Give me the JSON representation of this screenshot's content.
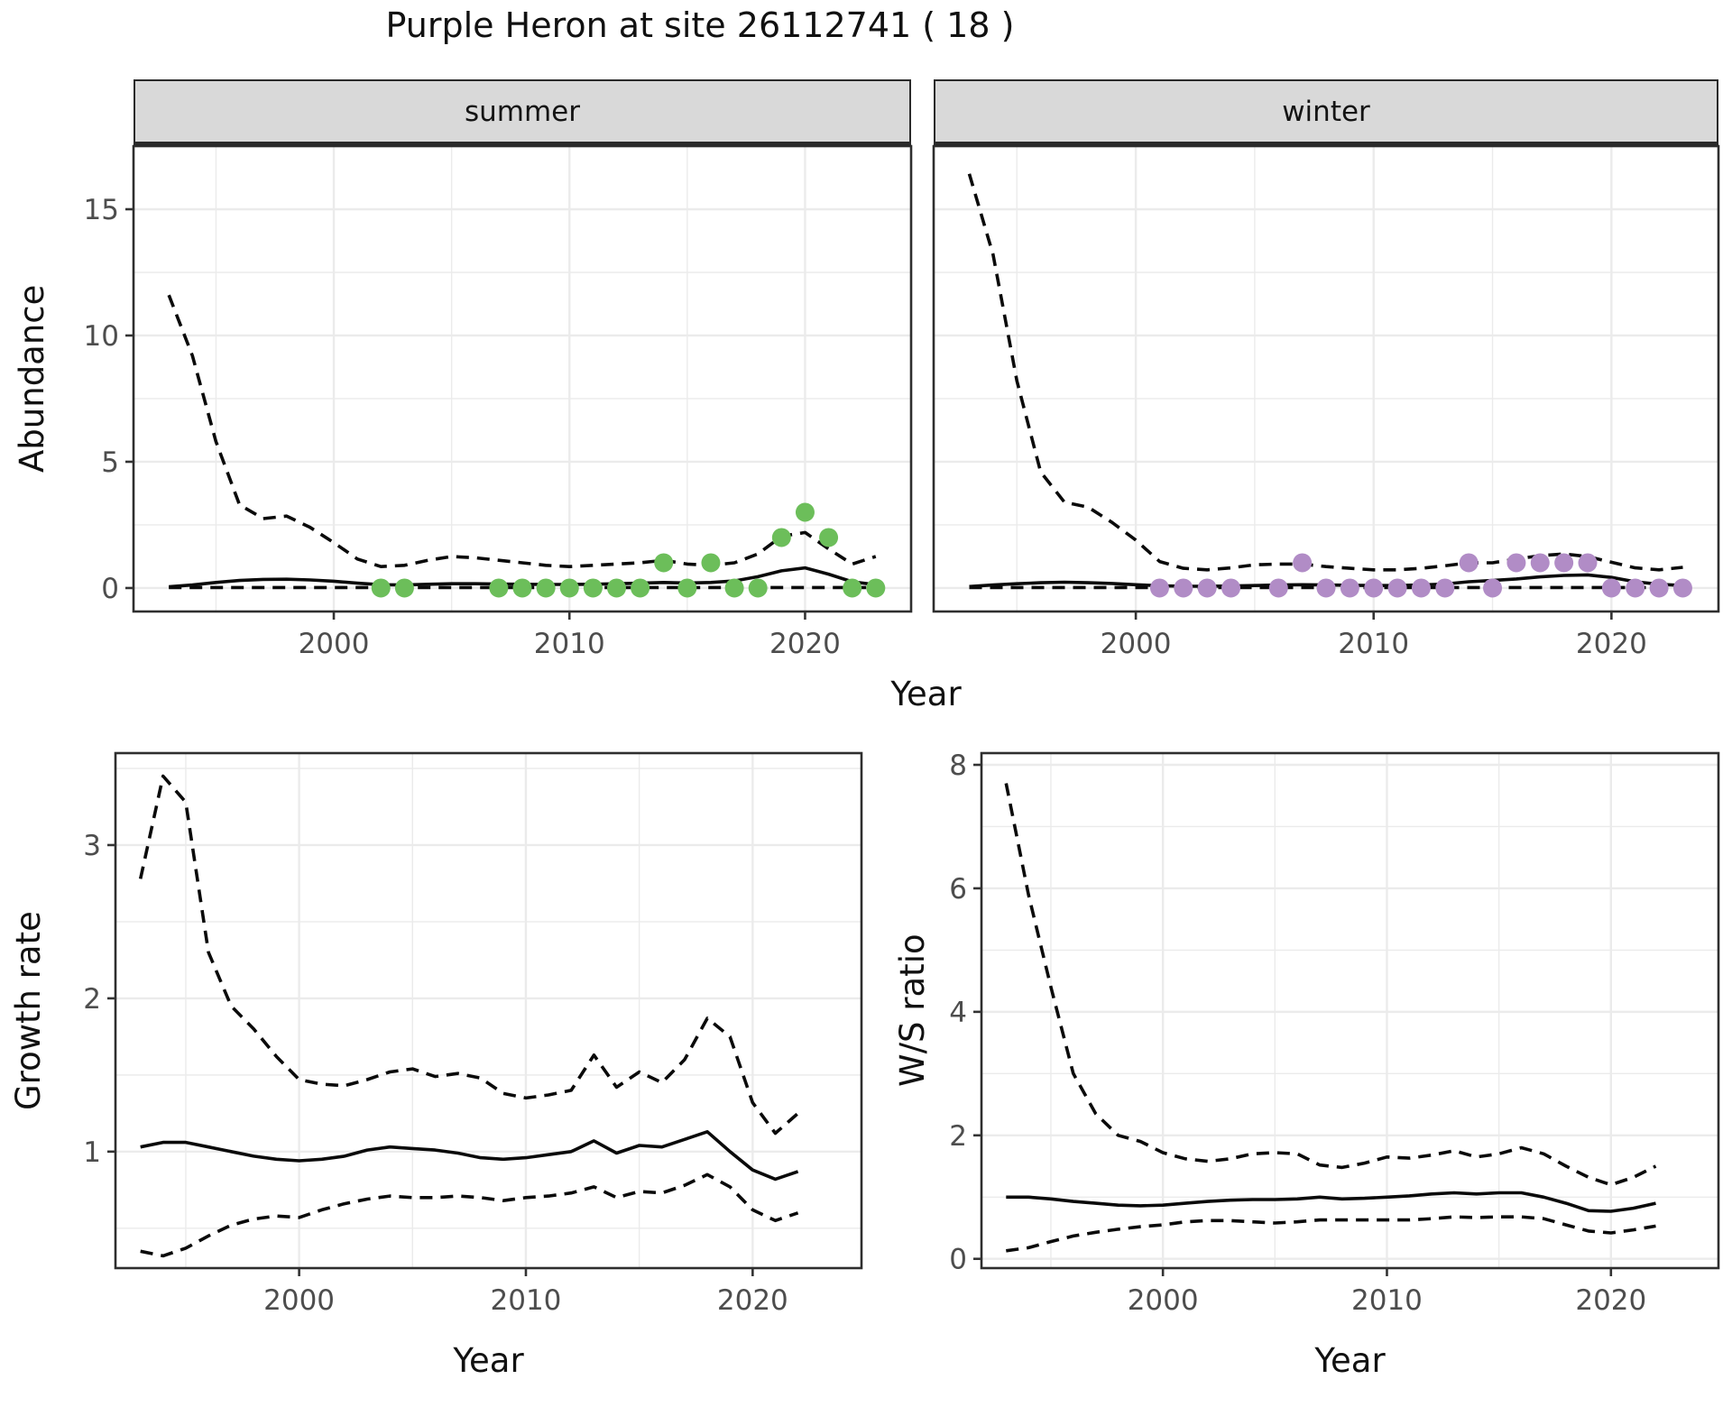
{
  "title": "Purple Heron at site 26112741 ( 18 )",
  "axes": {
    "abundance_label": "Abundance",
    "growth_label": "Growth rate",
    "ws_label": "W/S ratio",
    "year_label": "Year"
  },
  "facets": {
    "summer": "summer",
    "winter": "winter"
  },
  "colors": {
    "summer_point": "#6cbe5a",
    "winter_point": "#b18cc6",
    "line": "#0a0a0a",
    "grid": "#ebebeb",
    "panel_border": "#2e2e2e",
    "tick_mark": "#333333",
    "tick_text": "#4d4d4d",
    "strip_bg": "#d9d9d9"
  },
  "chart_data": [
    {
      "id": "abundance_summer",
      "type": "line",
      "facet_label": "summer",
      "xlabel": "Year",
      "ylabel": "Abundance",
      "xlim": [
        1991.5,
        2024.5
      ],
      "ylim": [
        -0.93,
        17.5
      ],
      "xticks": [
        2000,
        2010,
        2020
      ],
      "xminor": [
        1995,
        2005,
        2015
      ],
      "yticks": [
        0,
        5,
        10,
        15
      ],
      "yminor": [
        2.5,
        7.5,
        12.5
      ],
      "show_y_tick_labels": true,
      "x": [
        1993,
        1994,
        1995,
        1996,
        1997,
        1998,
        1999,
        2000,
        2001,
        2002,
        2003,
        2004,
        2005,
        2006,
        2007,
        2008,
        2009,
        2010,
        2011,
        2012,
        2013,
        2014,
        2015,
        2016,
        2017,
        2018,
        2019,
        2020,
        2021,
        2022,
        2023
      ],
      "series": [
        {
          "name": "upper_ci",
          "style": "dashed",
          "values": [
            11.6,
            9.2,
            5.8,
            3.3,
            2.75,
            2.85,
            2.4,
            1.8,
            1.15,
            0.85,
            0.9,
            1.1,
            1.25,
            1.2,
            1.1,
            1.0,
            0.9,
            0.85,
            0.9,
            0.95,
            1.0,
            1.1,
            0.95,
            0.9,
            1.0,
            1.35,
            2.05,
            2.2,
            1.55,
            0.95,
            1.25
          ]
        },
        {
          "name": "lower_ci",
          "style": "dashed",
          "values": [
            0.02,
            0.02,
            0.02,
            0.02,
            0.02,
            0.02,
            0.02,
            0.02,
            0.02,
            0.02,
            0.02,
            0.02,
            0.02,
            0.02,
            0.02,
            0.02,
            0.02,
            0.02,
            0.02,
            0.02,
            0.02,
            0.02,
            0.02,
            0.02,
            0.02,
            0.02,
            0.02,
            0.02,
            0.02,
            0.02,
            0.02
          ]
        },
        {
          "name": "mean",
          "style": "solid",
          "values": [
            0.05,
            0.12,
            0.22,
            0.3,
            0.34,
            0.35,
            0.32,
            0.27,
            0.19,
            0.13,
            0.12,
            0.15,
            0.17,
            0.17,
            0.16,
            0.15,
            0.14,
            0.14,
            0.15,
            0.17,
            0.19,
            0.22,
            0.2,
            0.22,
            0.28,
            0.45,
            0.68,
            0.8,
            0.55,
            0.25,
            0.13
          ]
        }
      ],
      "points": {
        "color_key": "summer_point",
        "x": [
          2002,
          2003,
          2007,
          2008,
          2009,
          2010,
          2011,
          2012,
          2013,
          2014,
          2015,
          2016,
          2017,
          2018,
          2019,
          2020,
          2021,
          2022,
          2023
        ],
        "y": [
          0,
          0,
          0,
          0,
          0,
          0,
          0,
          0,
          0,
          1,
          0,
          1,
          0,
          0,
          2,
          3,
          2,
          0,
          0
        ]
      }
    },
    {
      "id": "abundance_winter",
      "type": "line",
      "facet_label": "winter",
      "xlabel": "Year",
      "ylabel": "Abundance",
      "xlim": [
        1991.5,
        2024.5
      ],
      "ylim": [
        -0.93,
        17.5
      ],
      "xticks": [
        2000,
        2010,
        2020
      ],
      "xminor": [
        1995,
        2005,
        2015
      ],
      "yticks": [
        0,
        5,
        10,
        15
      ],
      "yminor": [
        2.5,
        7.5,
        12.5
      ],
      "show_y_tick_labels": false,
      "x": [
        1993,
        1994,
        1995,
        1996,
        1997,
        1998,
        1999,
        2000,
        2001,
        2002,
        2003,
        2004,
        2005,
        2006,
        2007,
        2008,
        2009,
        2010,
        2011,
        2012,
        2013,
        2014,
        2015,
        2016,
        2017,
        2018,
        2019,
        2020,
        2021,
        2022,
        2023
      ],
      "series": [
        {
          "name": "upper_ci",
          "style": "dashed",
          "values": [
            16.4,
            13.2,
            8.2,
            4.6,
            3.4,
            3.2,
            2.6,
            1.9,
            1.05,
            0.78,
            0.72,
            0.8,
            0.92,
            0.95,
            0.95,
            0.85,
            0.78,
            0.72,
            0.72,
            0.78,
            0.88,
            1.0,
            1.0,
            1.15,
            1.28,
            1.35,
            1.25,
            1.02,
            0.8,
            0.72,
            0.82
          ]
        },
        {
          "name": "lower_ci",
          "style": "dashed",
          "values": [
            0.02,
            0.02,
            0.02,
            0.02,
            0.02,
            0.02,
            0.02,
            0.02,
            0.02,
            0.02,
            0.02,
            0.02,
            0.02,
            0.02,
            0.02,
            0.02,
            0.02,
            0.02,
            0.02,
            0.02,
            0.02,
            0.02,
            0.02,
            0.02,
            0.02,
            0.02,
            0.02,
            0.02,
            0.02,
            0.02,
            0.02
          ]
        },
        {
          "name": "mean",
          "style": "solid",
          "values": [
            0.06,
            0.12,
            0.17,
            0.21,
            0.23,
            0.21,
            0.18,
            0.13,
            0.09,
            0.07,
            0.07,
            0.08,
            0.1,
            0.12,
            0.13,
            0.12,
            0.11,
            0.1,
            0.1,
            0.12,
            0.16,
            0.25,
            0.3,
            0.36,
            0.44,
            0.5,
            0.52,
            0.42,
            0.25,
            0.15,
            0.1
          ]
        }
      ],
      "points": {
        "color_key": "winter_point",
        "x": [
          2001,
          2002,
          2003,
          2004,
          2006,
          2007,
          2008,
          2009,
          2010,
          2011,
          2012,
          2013,
          2014,
          2015,
          2016,
          2017,
          2018,
          2019,
          2020,
          2021,
          2022,
          2023
        ],
        "y": [
          0,
          0,
          0,
          0,
          0,
          1,
          0,
          0,
          0,
          0,
          0,
          0,
          1,
          0,
          1,
          1,
          1,
          1,
          0,
          0,
          0,
          0
        ]
      }
    },
    {
      "id": "growth_rate",
      "type": "line",
      "facet_label": "",
      "xlabel": "Year",
      "ylabel": "Growth rate",
      "xlim": [
        1991.9,
        2024.8
      ],
      "ylim": [
        0.24,
        3.6
      ],
      "xticks": [
        2000,
        2010,
        2020
      ],
      "xminor": [
        1995,
        2005,
        2015
      ],
      "yticks": [
        1,
        2,
        3
      ],
      "yminor": [
        0.5,
        1.5,
        2.5,
        3.5
      ],
      "show_y_tick_labels": true,
      "x": [
        1993,
        1994,
        1995,
        1996,
        1997,
        1998,
        1999,
        2000,
        2001,
        2002,
        2003,
        2004,
        2005,
        2006,
        2007,
        2008,
        2009,
        2010,
        2011,
        2012,
        2013,
        2014,
        2015,
        2016,
        2017,
        2018,
        2019,
        2020,
        2021,
        2022
      ],
      "series": [
        {
          "name": "upper_ci",
          "style": "dashed",
          "values": [
            2.78,
            3.45,
            3.28,
            2.3,
            1.95,
            1.8,
            1.62,
            1.47,
            1.44,
            1.43,
            1.47,
            1.52,
            1.54,
            1.49,
            1.51,
            1.48,
            1.38,
            1.35,
            1.37,
            1.4,
            1.63,
            1.42,
            1.52,
            1.45,
            1.6,
            1.87,
            1.75,
            1.32,
            1.12,
            1.25
          ]
        },
        {
          "name": "lower_ci",
          "style": "dashed",
          "values": [
            0.35,
            0.32,
            0.37,
            0.45,
            0.52,
            0.56,
            0.58,
            0.57,
            0.62,
            0.66,
            0.69,
            0.71,
            0.7,
            0.7,
            0.71,
            0.7,
            0.68,
            0.7,
            0.71,
            0.73,
            0.77,
            0.7,
            0.74,
            0.73,
            0.78,
            0.85,
            0.77,
            0.62,
            0.55,
            0.6
          ]
        },
        {
          "name": "mean",
          "style": "solid",
          "values": [
            1.03,
            1.06,
            1.06,
            1.03,
            1.0,
            0.97,
            0.95,
            0.94,
            0.95,
            0.97,
            1.01,
            1.03,
            1.02,
            1.01,
            0.99,
            0.96,
            0.95,
            0.96,
            0.98,
            1.0,
            1.07,
            0.99,
            1.04,
            1.03,
            1.08,
            1.13,
            1.0,
            0.88,
            0.82,
            0.87
          ]
        }
      ],
      "points": null
    },
    {
      "id": "ws_ratio",
      "type": "line",
      "facet_label": "",
      "xlabel": "Year",
      "ylabel": "W/S ratio",
      "xlim": [
        1991.9,
        2024.8
      ],
      "ylim": [
        -0.15,
        8.19
      ],
      "xticks": [
        2000,
        2010,
        2020
      ],
      "xminor": [
        1995,
        2005,
        2015
      ],
      "yticks": [
        0,
        2,
        4,
        6,
        8
      ],
      "yminor": [
        1,
        3,
        5,
        7
      ],
      "show_y_tick_labels": true,
      "x": [
        1993,
        1994,
        1995,
        1996,
        1997,
        1998,
        1999,
        2000,
        2001,
        2002,
        2003,
        2004,
        2005,
        2006,
        2007,
        2008,
        2009,
        2010,
        2011,
        2012,
        2013,
        2014,
        2015,
        2016,
        2017,
        2018,
        2019,
        2020,
        2021,
        2022
      ],
      "series": [
        {
          "name": "upper_ci",
          "style": "dashed",
          "values": [
            7.7,
            5.9,
            4.4,
            3.0,
            2.35,
            2.0,
            1.9,
            1.72,
            1.62,
            1.58,
            1.62,
            1.7,
            1.72,
            1.7,
            1.52,
            1.48,
            1.55,
            1.65,
            1.63,
            1.68,
            1.75,
            1.65,
            1.7,
            1.8,
            1.7,
            1.5,
            1.32,
            1.2,
            1.32,
            1.5
          ]
        },
        {
          "name": "lower_ci",
          "style": "dashed",
          "values": [
            0.13,
            0.18,
            0.28,
            0.37,
            0.43,
            0.48,
            0.52,
            0.55,
            0.6,
            0.62,
            0.62,
            0.6,
            0.58,
            0.6,
            0.63,
            0.63,
            0.63,
            0.63,
            0.63,
            0.65,
            0.68,
            0.67,
            0.68,
            0.68,
            0.65,
            0.55,
            0.45,
            0.42,
            0.47,
            0.53
          ]
        },
        {
          "name": "mean",
          "style": "solid",
          "values": [
            1.0,
            1.0,
            0.97,
            0.93,
            0.9,
            0.87,
            0.86,
            0.87,
            0.9,
            0.93,
            0.95,
            0.96,
            0.96,
            0.97,
            1.0,
            0.97,
            0.98,
            1.0,
            1.02,
            1.05,
            1.07,
            1.05,
            1.07,
            1.07,
            1.0,
            0.9,
            0.78,
            0.77,
            0.82,
            0.9
          ]
        }
      ],
      "points": null
    }
  ]
}
